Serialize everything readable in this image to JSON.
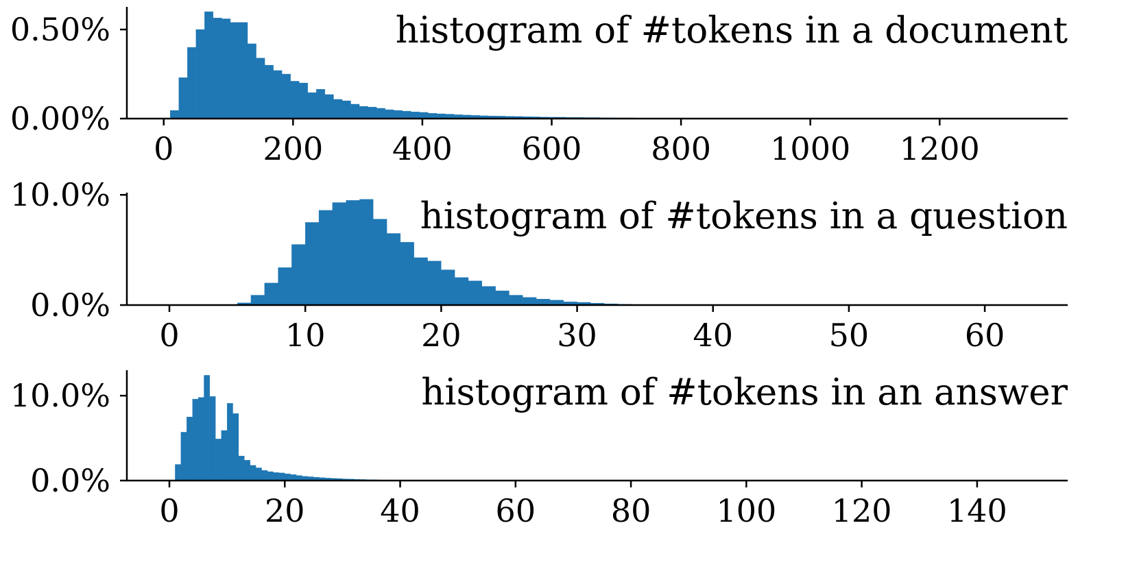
{
  "chart_data": [
    {
      "type": "histogram",
      "title": "histogram of #tokens in a document",
      "color": "#1f77b4",
      "bins": [
        10,
        23.3,
        36.6,
        49.9,
        63.2,
        76.5,
        89.8,
        103.1,
        116.4,
        129.7,
        143,
        156.3,
        169.6,
        182.9,
        196.2,
        209.5,
        222.8,
        236.1,
        249.4,
        262.7,
        276,
        289.3,
        302.6,
        315.9,
        329.2,
        342.5,
        355.8,
        369.1,
        382.4,
        395.7,
        409,
        422.3,
        435.6,
        448.9,
        462.2,
        475.5,
        488.8,
        502.1,
        515.4,
        528.7,
        542,
        555.3,
        568.6,
        581.9,
        595.2,
        608.5,
        621.8,
        635.1,
        648.4,
        661.7,
        675,
        688.3,
        701.6,
        714.9,
        728.2,
        741.5,
        754.8
      ],
      "values": [
        0.046,
        0.23,
        0.4,
        0.5,
        0.6,
        0.565,
        0.56,
        0.54,
        0.54,
        0.42,
        0.34,
        0.3,
        0.27,
        0.25,
        0.21,
        0.2,
        0.146,
        0.165,
        0.135,
        0.108,
        0.1,
        0.081,
        0.069,
        0.065,
        0.058,
        0.05,
        0.046,
        0.042,
        0.038,
        0.035,
        0.03,
        0.027,
        0.025,
        0.022,
        0.02,
        0.018,
        0.016,
        0.015,
        0.014,
        0.013,
        0.012,
        0.011,
        0.01,
        0.009,
        0.008,
        0.008,
        0.007,
        0.007,
        0.006,
        0.006,
        0.005,
        0.005,
        0.004,
        0.004,
        0.003,
        0.003
      ],
      "xlim": [
        -57,
        1398
      ],
      "ylim": [
        0,
        0.627
      ],
      "xticks": [
        0,
        200,
        400,
        600,
        800,
        1000,
        1200
      ],
      "yticks": [
        {
          "value": 0,
          "label": "0.00%"
        },
        {
          "value": 0.5,
          "label": "0.50%"
        }
      ]
    },
    {
      "type": "histogram",
      "title": "histogram of #tokens in a question",
      "color": "#1f77b4",
      "bins": [
        5,
        6,
        7,
        8,
        9,
        10,
        11,
        12,
        13,
        14,
        15,
        16,
        17,
        18,
        19,
        20,
        21,
        22,
        23,
        24,
        25,
        26,
        27,
        28,
        29,
        30,
        31,
        32,
        33,
        34,
        35,
        36
      ],
      "values": [
        0.2,
        0.9,
        2.0,
        3.4,
        5.5,
        7.5,
        8.6,
        9.3,
        9.5,
        9.6,
        7.8,
        6.5,
        5.7,
        4.3,
        4.0,
        3.2,
        2.5,
        2.2,
        1.7,
        1.3,
        0.9,
        0.7,
        0.55,
        0.45,
        0.3,
        0.25,
        0.18,
        0.12,
        0.08,
        0.05,
        0.03
      ],
      "xlim": [
        -3.13,
        66.1
      ],
      "ylim": [
        0,
        10.2
      ],
      "xticks": [
        0,
        10,
        20,
        30,
        40,
        50,
        60
      ],
      "yticks": [
        {
          "value": 0,
          "label": "0.0%"
        },
        {
          "value": 10,
          "label": "10.0%"
        }
      ]
    },
    {
      "type": "histogram",
      "title": "histogram of #tokens in an answer",
      "color": "#1f77b4",
      "bins": [
        1,
        2,
        3,
        4,
        5,
        6,
        7,
        8,
        9,
        10,
        11,
        12,
        13,
        14,
        15,
        16,
        17,
        18,
        19,
        20,
        21,
        22,
        23,
        24,
        25,
        26,
        27,
        28,
        29,
        30,
        31,
        32,
        33,
        34,
        35,
        36,
        37,
        38,
        39,
        40,
        41
      ],
      "values": [
        1.9,
        5.7,
        7.5,
        9.6,
        9.8,
        12.4,
        9.9,
        4.9,
        5.9,
        9.1,
        7.9,
        2.9,
        2.4,
        1.8,
        1.5,
        1.2,
        1.05,
        0.95,
        0.9,
        0.8,
        0.7,
        0.6,
        0.5,
        0.45,
        0.4,
        0.35,
        0.3,
        0.27,
        0.24,
        0.2,
        0.18,
        0.15,
        0.13,
        0.11,
        0.1,
        0.08,
        0.07,
        0.06,
        0.05,
        0.04
      ],
      "xlim": [
        -7.37,
        155.7
      ],
      "ylim": [
        0,
        13.0
      ],
      "xticks": [
        0,
        20,
        40,
        60,
        80,
        100,
        120,
        140
      ],
      "yticks": [
        {
          "value": 0,
          "label": "0.0%"
        },
        {
          "value": 10,
          "label": "10.0%"
        }
      ]
    }
  ]
}
